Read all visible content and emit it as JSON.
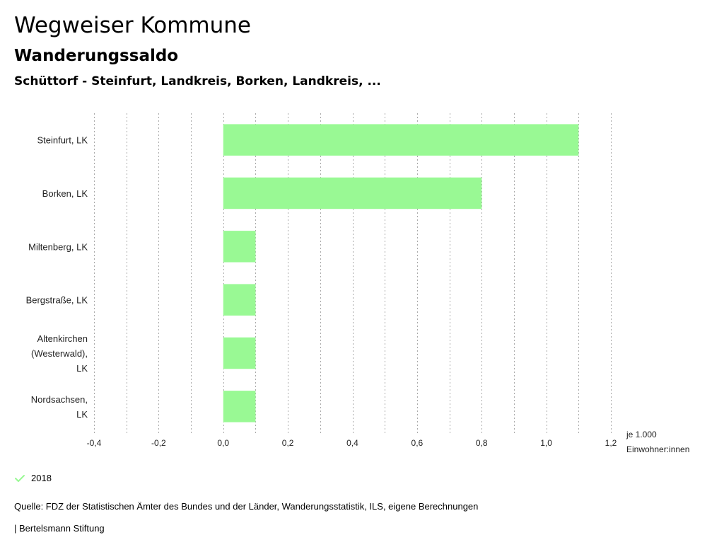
{
  "header": {
    "title": "Wegweiser Kommune",
    "subtitle": "Wanderungssaldo",
    "filter": "Schüttorf - Steinfurt, Landkreis, Borken, Landkreis, ..."
  },
  "chart_data": {
    "type": "bar",
    "orientation": "horizontal",
    "categories": [
      [
        "Steinfurt, LK"
      ],
      [
        "Borken, LK"
      ],
      [
        "Miltenberg, LK"
      ],
      [
        "Bergstraße, LK"
      ],
      [
        "Altenkirchen",
        "(Westerwald),",
        "LK"
      ],
      [
        "Nordsachsen,",
        "LK"
      ]
    ],
    "series": [
      {
        "name": "2018",
        "values": [
          1.1,
          0.8,
          0.1,
          0.1,
          0.1,
          0.1
        ]
      }
    ],
    "xlim": [
      -0.4,
      1.2
    ],
    "xticks": [
      -0.4,
      -0.2,
      0.0,
      0.2,
      0.4,
      0.6,
      0.8,
      1.0,
      1.2
    ],
    "xtick_labels": [
      "-0,4",
      "-0,2",
      "0,0",
      "0,2",
      "0,4",
      "0,6",
      "0,8",
      "1,0",
      "1,2"
    ],
    "xlabel": [
      "je 1.000",
      "Einwohner:innen"
    ],
    "grid": true,
    "bar_color": "#99f994"
  },
  "legend": {
    "label": "2018",
    "color": "#99f994"
  },
  "footer": {
    "source": "Quelle: FDZ der Statistischen Ämter des Bundes und der Länder, Wanderungsstatistik, ILS, eigene Berechnungen",
    "credit": "| Bertelsmann Stiftung"
  }
}
